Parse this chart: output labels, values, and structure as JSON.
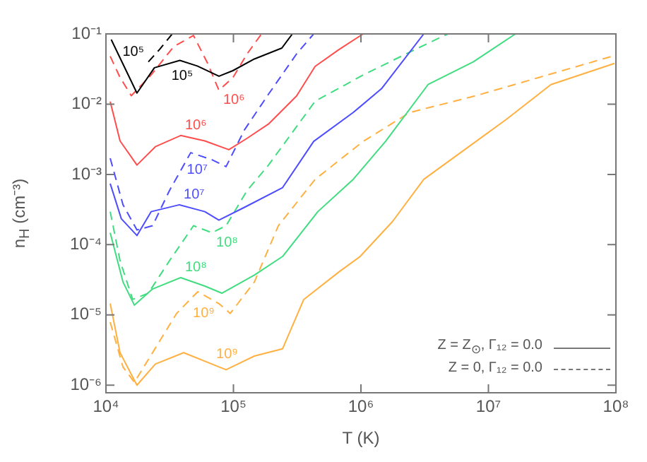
{
  "chart_data": {
    "type": "line",
    "xlabel": "T (K)",
    "ylabel": "n$_{H}$ (cm⁻³)",
    "log": "xy",
    "marker": "none",
    "grid": false,
    "legend": false,
    "xlim": [
      10000,
      100000000
    ],
    "xticks": [
      {
        "value": 10000,
        "label": "10⁴"
      },
      {
        "value": 100000,
        "label": "10⁵"
      },
      {
        "value": 1000000,
        "label": "10⁶"
      },
      {
        "value": 10000000,
        "label": "10⁷"
      },
      {
        "value": 100000000,
        "label": "10⁸"
      }
    ],
    "ylim": [
      7.8e-07,
      0.1
    ],
    "yticks": [
      {
        "value": 1e-06,
        "label": "10⁻⁶"
      },
      {
        "value": 1e-05,
        "label": "10⁻⁵"
      },
      {
        "value": 0.0001,
        "label": "10⁻⁴"
      },
      {
        "value": 0.001,
        "label": "10⁻³"
      },
      {
        "value": 0.01,
        "label": "10⁻²"
      },
      {
        "value": 0.1,
        "label": "10⁻¹"
      }
    ],
    "annotations": [
      "Z = Z$_{⊙}$, Γ₁₂ = 0.0",
      "Z = 0, Γ₁₂ = 0.0"
    ],
    "series": [
      {
        "name": "10⁵",
        "color": "#000000",
        "line_style": "solid",
        "x": [
          11000,
          17500,
          24000,
          38000,
          52000,
          77000,
          99000,
          146000,
          240000,
          290000
        ],
        "values": [
          0.083,
          0.0144,
          0.033,
          0.042,
          0.035,
          0.025,
          0.03,
          0.044,
          0.063,
          0.1
        ]
      },
      {
        "name": "10⁵",
        "color": "#000000",
        "line_style": "dashed",
        "x": [
          21500,
          26300,
          33100
        ],
        "values": [
          0.04,
          0.06,
          0.1
        ]
      },
      {
        "name": "10⁶",
        "color": "#ff4d4d",
        "line_style": "solid",
        "x": [
          10800,
          12900,
          17500,
          24400,
          38600,
          59700,
          92000,
          128000,
          188000,
          313000,
          437000,
          673000,
          1040000
        ],
        "values": [
          0.0109,
          0.003,
          0.00136,
          0.00248,
          0.00358,
          0.003,
          0.00225,
          0.00327,
          0.0052,
          0.0131,
          0.0345,
          0.06,
          0.1
        ]
      },
      {
        "name": "10⁶",
        "color": "#ff4d4d",
        "line_style": "dashed",
        "x": [
          10800,
          12900,
          15800,
          22600,
          34000,
          48600,
          62800,
          76900,
          99300,
          128000,
          166000
        ],
        "values": [
          0.048,
          0.024,
          0.0132,
          0.026,
          0.066,
          0.095,
          0.038,
          0.0158,
          0.024,
          0.052,
          0.1
        ]
      },
      {
        "name": "10⁷",
        "color": "#4d4dff",
        "line_style": "solid",
        "x": [
          10800,
          13200,
          17500,
          22600,
          37700,
          59700,
          76900,
          122000,
          243000,
          426000,
          869000,
          1450000,
          3110000
        ],
        "values": [
          0.00074,
          0.000234,
          0.000135,
          0.000295,
          0.00037,
          0.000295,
          0.000224,
          0.00034,
          0.00065,
          0.00295,
          0.0076,
          0.0166,
          0.1
        ]
      },
      {
        "name": "10⁷",
        "color": "#4d4dff",
        "line_style": "dashed",
        "x": [
          10800,
          13600,
          17500,
          23200,
          31500,
          46200,
          67800,
          87500,
          122000,
          188000,
          313000,
          426000
        ],
        "values": [
          0.0017,
          0.00037,
          0.000162,
          0.000186,
          0.00059,
          0.00204,
          0.00162,
          0.00129,
          0.0043,
          0.0138,
          0.052,
          0.1
        ]
      },
      {
        "name": "10⁸",
        "color": "#40dd80",
        "line_style": "solid",
        "x": [
          10800,
          13600,
          16700,
          23200,
          38600,
          59700,
          81100,
          146000,
          243000,
          459000,
          869000,
          1560000,
          3360000,
          7600000,
          16300000
        ],
        "values": [
          0.000148,
          2.95e-05,
          1.38e-05,
          2.34e-05,
          3.4e-05,
          2.57e-05,
          2.04e-05,
          3.7e-05,
          6.8e-05,
          0.000295,
          0.00085,
          0.00295,
          0.019,
          0.04,
          0.1
        ]
      },
      {
        "name": "10⁸",
        "color": "#40dd80",
        "line_style": "dashed",
        "x": [
          10800,
          12900,
          16200,
          21500,
          31500,
          48600,
          67800,
          87500,
          128000,
          188000,
          437000,
          1040000,
          2410000,
          4800000
        ],
        "values": [
          0.000295,
          5.9e-05,
          1.66e-05,
          2.04e-05,
          5.9e-05,
          0.000186,
          0.000148,
          0.000186,
          0.00059,
          0.00135,
          0.011,
          0.026,
          0.055,
          0.1
        ]
      },
      {
        "name": "10⁹",
        "color": "#ffb040",
        "line_style": "solid",
        "x": [
          10800,
          12900,
          17500,
          24400,
          40700,
          67800,
          87500,
          146000,
          243000,
          356000,
          673000,
          986000,
          1770000,
          3110000,
          8000000,
          13700000,
          30900000,
          97500000
        ],
        "values": [
          1.45e-05,
          2.9e-06,
          1e-06,
          2e-06,
          2.9e-06,
          2e-06,
          1.66e-06,
          2.6e-06,
          3.3e-06,
          1.66e-05,
          4.1e-05,
          6.8e-05,
          0.000214,
          0.00085,
          0.00295,
          0.006,
          0.019,
          0.038
        ]
      },
      {
        "name": "10⁹",
        "color": "#ffb040",
        "line_style": "dashed",
        "x": [
          10800,
          13600,
          16700,
          23200,
          35800,
          52500,
          76900,
          94400,
          146000,
          225000,
          437000,
          1040000,
          2410000,
          8000000,
          93000000
        ],
        "values": [
          7.9e-06,
          1.82e-06,
          1.1e-06,
          2.9e-06,
          1.05e-05,
          2.14e-05,
          1.45e-05,
          1.05e-05,
          2.95e-05,
          0.000186,
          0.00085,
          0.00295,
          0.0076,
          0.0132,
          0.048
        ]
      }
    ]
  }
}
